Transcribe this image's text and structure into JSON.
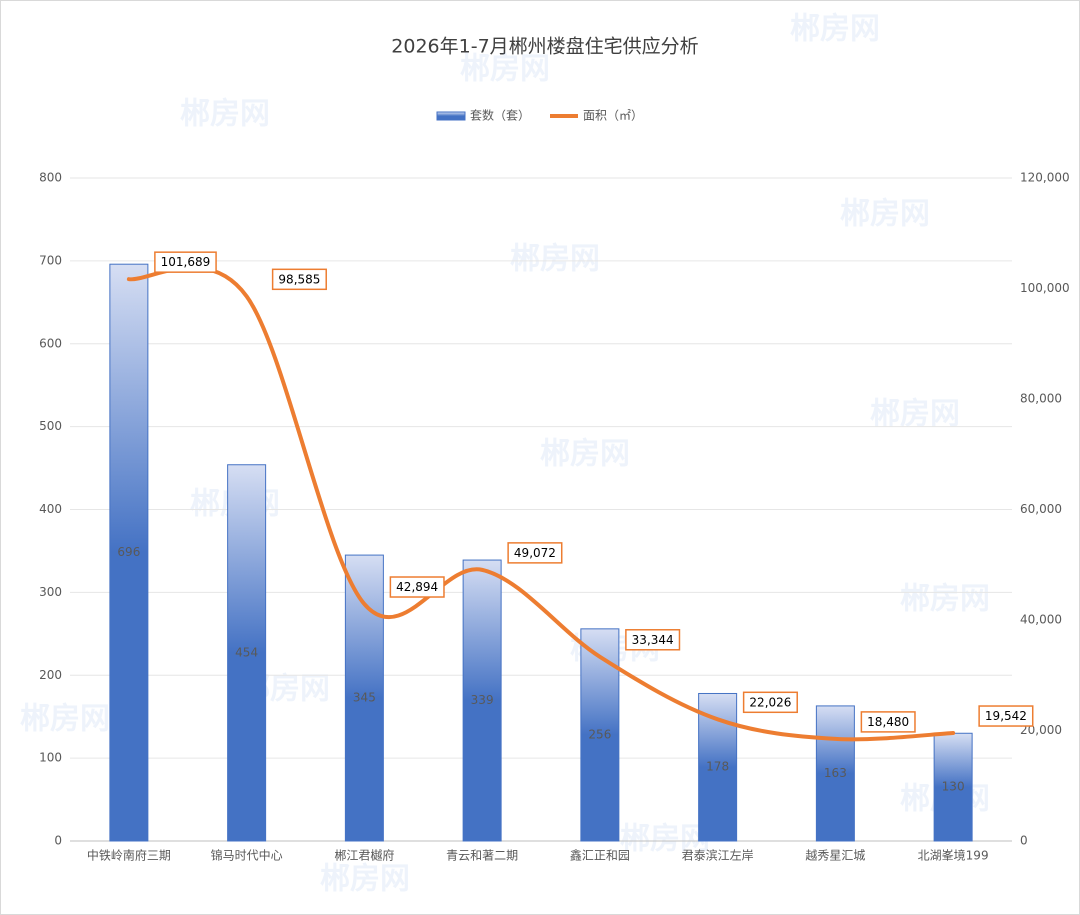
{
  "chart_data": {
    "type": "bar_line",
    "title": "2026年1-7月郴州楼盘住宅供应分析",
    "watermark": "郴房网",
    "categories": [
      "中铁岭南府三期",
      "锦马时代中心",
      "郴江君樾府",
      "青云和著二期",
      "鑫汇正和园",
      "君泰滨江左岸",
      "越秀星汇城",
      "北湖峯境199"
    ],
    "series": [
      {
        "name": "套数（套）",
        "color": "#4472c4",
        "type": "bar",
        "values": [
          696,
          454,
          345,
          339,
          256,
          178,
          163,
          130
        ]
      },
      {
        "name": "面积（㎡）",
        "color": "#ed7d31",
        "type": "line",
        "axis": "y2",
        "values": [
          101689,
          98585,
          42894,
          49072,
          33344,
          22026,
          18480,
          19542
        ],
        "value_labels": [
          "101,689",
          "98,585",
          "42,894",
          "49,072",
          "33,344",
          "22,026",
          "18,480",
          "19,542"
        ]
      }
    ],
    "ylim": [
      0,
      800
    ],
    "yticks": [
      0,
      100,
      200,
      300,
      400,
      500,
      600,
      700,
      800
    ],
    "y2lim": [
      0,
      120000
    ],
    "y2ticks": [
      0,
      {
        "value": 20000,
        "label": "20,000"
      },
      {
        "value": 40000,
        "label": "40,000"
      },
      {
        "value": 60000,
        "label": "60,000"
      },
      {
        "value": 80000,
        "label": "80,000"
      },
      {
        "value": 100000,
        "label": "100,000"
      },
      {
        "value": 120000,
        "label": "120,000"
      }
    ],
    "grid": true,
    "legend": "top"
  }
}
